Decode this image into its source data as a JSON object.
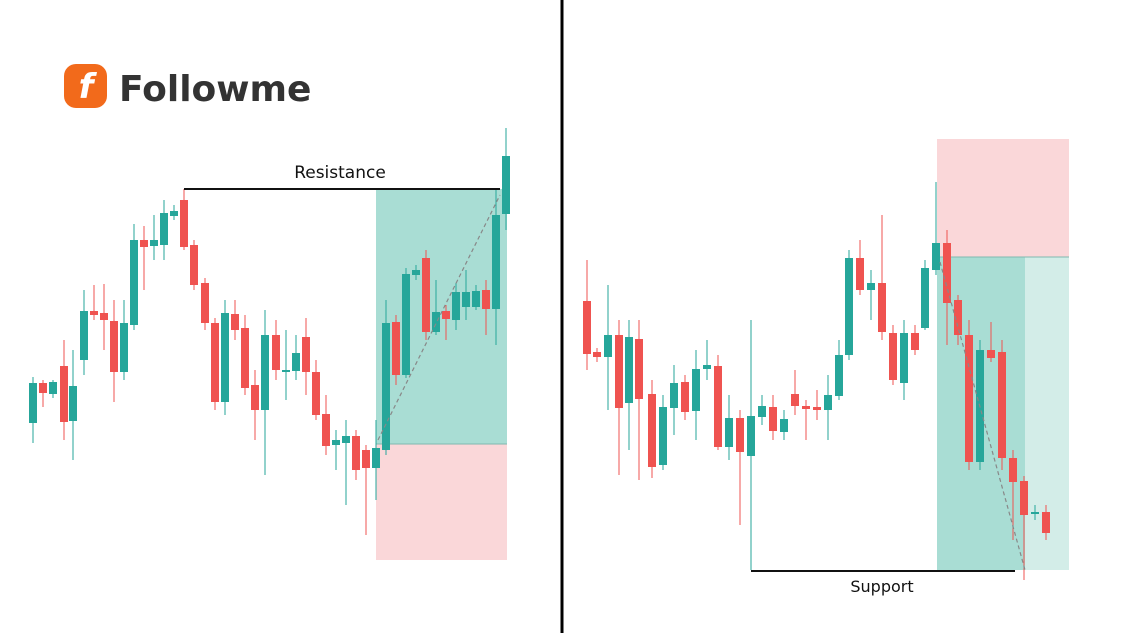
{
  "logo": {
    "text": "Followme"
  },
  "left_panel": {
    "label": "Resistance"
  },
  "right_panel": {
    "label": "Support"
  }
}
